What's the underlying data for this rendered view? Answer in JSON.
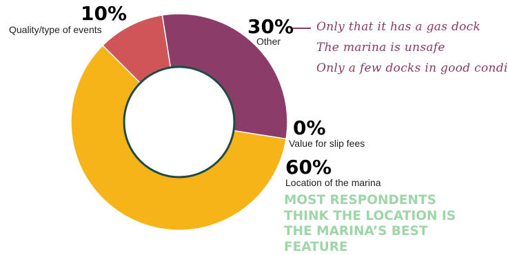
{
  "chart_data": {
    "type": "pie",
    "variant": "donut",
    "slices": [
      {
        "label": "Quality/type of events",
        "value": 10,
        "pct_text": "10%",
        "color": "#cf5559"
      },
      {
        "label": "Other",
        "value": 30,
        "pct_text": "30%",
        "color": "#8c3c68"
      },
      {
        "label": "Value for slip fees",
        "value": 0,
        "pct_text": "0%",
        "color": "#2a8a78"
      },
      {
        "label": "Location of the marina",
        "value": 60,
        "pct_text": "60%",
        "color": "#f6b418"
      }
    ],
    "other_notes": [
      "Only that it has a gas dock",
      "The marina is unsafe",
      "Only a few docks in good condition"
    ],
    "callout": "MOST RESPONDENTS THINK THE LOCATION IS THE MARINA’S BEST FEATURE",
    "colors": {
      "center_ring": "#1f4b45",
      "callout": "#9fd6a8",
      "notes": "#8a3a64"
    }
  }
}
